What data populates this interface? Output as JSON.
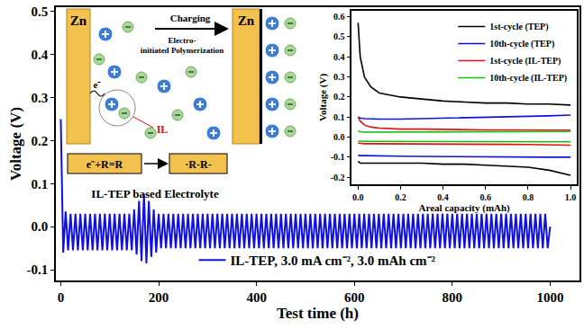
{
  "chart_data": [
    {
      "type": "line",
      "x_label": "Test time (h)",
      "y_label": "Voltage (V)",
      "x": [
        0,
        5,
        10,
        15,
        20,
        25,
        30,
        35,
        40,
        45,
        50,
        55,
        60,
        65,
        70,
        75,
        80,
        85,
        90,
        95,
        100,
        105,
        110,
        115,
        120,
        125,
        130,
        135,
        140,
        145,
        150,
        155,
        160,
        165,
        170,
        175,
        180,
        185,
        190,
        195,
        200,
        205,
        210,
        215,
        220,
        225,
        230,
        235,
        240,
        245,
        250,
        255,
        260,
        265,
        270,
        275,
        280,
        285,
        290,
        295,
        300,
        305,
        310,
        315,
        320,
        325,
        330,
        335,
        340,
        345,
        350,
        355,
        360,
        365,
        370,
        375,
        380,
        385,
        390,
        395,
        400,
        405,
        410,
        415,
        420,
        425,
        430,
        435,
        440,
        445,
        450,
        455,
        460,
        465,
        470,
        475,
        480,
        485,
        490,
        495,
        500,
        505,
        510,
        515,
        520,
        525,
        530,
        535,
        540,
        545,
        550,
        555,
        560,
        565,
        570,
        575,
        580,
        585,
        590,
        595,
        600,
        605,
        610,
        615,
        620,
        625,
        630,
        635,
        640,
        645,
        650,
        655,
        660,
        665,
        670,
        675,
        680,
        685,
        690,
        695,
        700,
        705,
        710,
        715,
        720,
        725,
        730,
        735,
        740,
        745,
        750,
        755,
        760,
        765,
        770,
        775,
        780,
        785,
        790,
        795,
        800,
        805,
        810,
        815,
        820,
        825,
        830,
        835,
        840,
        845,
        850,
        855,
        860,
        865,
        870,
        875,
        880,
        885,
        890,
        895,
        900,
        905,
        910,
        915,
        920,
        925,
        930,
        935,
        940,
        945,
        950,
        955,
        960,
        965,
        970,
        975,
        980,
        985,
        990,
        995,
        1000
      ],
      "series": [
        {
          "name": "IL-TEP, 3.0 mA cm⁻², 3.0 mAh cm⁻²",
          "color": "#1010e0",
          "values": [
            0.25,
            -0.06,
            0.035,
            -0.055,
            0.03,
            -0.055,
            0.03,
            -0.055,
            0.03,
            -0.055,
            0.03,
            -0.055,
            0.03,
            -0.055,
            0.03,
            -0.055,
            0.03,
            -0.055,
            0.03,
            -0.055,
            0.03,
            -0.055,
            0.03,
            -0.055,
            0.03,
            -0.055,
            0.03,
            -0.055,
            0.03,
            -0.055,
            0.04,
            -0.065,
            0.06,
            -0.08,
            0.075,
            -0.085,
            0.06,
            -0.07,
            0.04,
            -0.06,
            0.03,
            -0.05,
            0.03,
            -0.05,
            0.03,
            -0.05,
            0.03,
            -0.05,
            0.03,
            -0.05,
            0.03,
            -0.05,
            0.03,
            -0.05,
            0.03,
            -0.05,
            0.03,
            -0.05,
            0.03,
            -0.05,
            0.03,
            -0.05,
            0.03,
            -0.05,
            0.03,
            -0.05,
            0.03,
            -0.05,
            0.03,
            -0.05,
            0.03,
            -0.05,
            0.03,
            -0.05,
            0.03,
            -0.05,
            0.03,
            -0.05,
            0.03,
            -0.05,
            0.03,
            -0.05,
            0.03,
            -0.05,
            0.03,
            -0.05,
            0.03,
            -0.05,
            0.03,
            -0.05,
            0.03,
            -0.05,
            0.03,
            -0.05,
            0.03,
            -0.05,
            0.03,
            -0.05,
            0.03,
            -0.05,
            0.03,
            -0.05,
            0.03,
            -0.05,
            0.03,
            -0.05,
            0.03,
            -0.05,
            0.03,
            -0.05,
            0.03,
            -0.05,
            0.03,
            -0.05,
            0.03,
            -0.05,
            0.03,
            -0.05,
            0.03,
            -0.05,
            0.03,
            -0.05,
            0.03,
            -0.05,
            0.03,
            -0.05,
            0.03,
            -0.05,
            0.03,
            -0.05,
            0.03,
            -0.05,
            0.03,
            -0.05,
            0.03,
            -0.05,
            0.03,
            -0.05,
            0.03,
            -0.05,
            0.03,
            -0.05,
            0.03,
            -0.05,
            0.03,
            -0.05,
            0.03,
            -0.05,
            0.03,
            -0.05,
            0.03,
            -0.05,
            0.03,
            -0.05,
            0.03,
            -0.05,
            0.03,
            -0.05,
            0.03,
            -0.05,
            0.03,
            -0.05,
            0.03,
            -0.05,
            0.03,
            -0.05,
            0.03,
            -0.05,
            0.03,
            -0.05,
            0.03,
            -0.05,
            0.03,
            -0.05,
            0.03,
            -0.05,
            0.03,
            -0.05,
            0.03,
            -0.05,
            0.03,
            -0.05,
            0.03,
            -0.05,
            0.03,
            -0.05,
            0.03,
            -0.05,
            0.03,
            -0.05,
            0.03,
            -0.05,
            0.03,
            -0.05,
            0.03,
            -0.05,
            0.03,
            -0.05,
            0.03,
            -0.05,
            0
          ]
        }
      ],
      "xlim": [
        -10,
        1060
      ],
      "ylim": [
        -0.125,
        0.51
      ],
      "xticks": [
        0,
        200,
        400,
        600,
        800,
        1000
      ],
      "yticks": [
        -0.1,
        {
          "value": 0,
          "label": "0.0"
        },
        0.1,
        0.2,
        0.3,
        0.4,
        0.5
      ],
      "grid": false,
      "legend": "lower center"
    },
    {
      "type": "line",
      "x_label": "Areal capacity (mAh)",
      "y_label": "Voltage (V)",
      "x": [
        0,
        0.01,
        0.03,
        0.06,
        0.1,
        0.2,
        0.3,
        0.4,
        0.5,
        0.6,
        0.7,
        0.8,
        0.9,
        1.0,
        null,
        0,
        0.01,
        0.03,
        0.06,
        0.1,
        0.2,
        0.3,
        0.4,
        0.5,
        0.6,
        0.7,
        0.8,
        0.9,
        1.0
      ],
      "series": [
        {
          "name": "1st-cycle (TEP)",
          "color": "#000000",
          "values": [
            0.57,
            0.4,
            0.3,
            0.25,
            0.22,
            0.2,
            0.19,
            0.18,
            0.175,
            0.17,
            0.17,
            0.165,
            0.165,
            0.16,
            null,
            -0.12,
            -0.13,
            -0.13,
            -0.13,
            -0.13,
            -0.13,
            -0.13,
            -0.135,
            -0.135,
            -0.14,
            -0.145,
            -0.15,
            -0.165,
            -0.19
          ]
        },
        {
          "name": "10th-cycle (TEP)",
          "color": "#1010e0",
          "values": [
            0.1,
            0.095,
            0.092,
            0.09,
            0.09,
            0.09,
            0.092,
            0.094,
            0.096,
            0.098,
            0.1,
            0.103,
            0.106,
            0.11,
            null,
            -0.09,
            -0.092,
            -0.092,
            -0.093,
            -0.094,
            -0.095,
            -0.096,
            -0.097,
            -0.098,
            -0.1,
            -0.1,
            -0.1,
            -0.1,
            -0.1
          ]
        },
        {
          "name": "1st-cycle (IL-TEP)",
          "color": "#e01010",
          "values": [
            0.1,
            0.08,
            0.06,
            0.05,
            0.045,
            0.04,
            0.04,
            0.038,
            0.037,
            0.036,
            0.036,
            0.035,
            0.035,
            0.035,
            null,
            -0.03,
            -0.032,
            -0.033,
            -0.033,
            -0.033,
            -0.033,
            -0.034,
            -0.034,
            -0.035,
            -0.035,
            -0.036,
            -0.037,
            -0.038,
            -0.04
          ]
        },
        {
          "name": "10th-cycle (IL-TEP)",
          "color": "#10c010",
          "values": [
            0.03,
            0.027,
            0.025,
            0.025,
            0.025,
            0.025,
            0.025,
            0.025,
            0.026,
            0.026,
            0.027,
            0.027,
            0.028,
            0.028,
            null,
            -0.02,
            -0.021,
            -0.021,
            -0.021,
            -0.021,
            -0.021,
            -0.021,
            -0.022,
            -0.022,
            -0.022,
            -0.022,
            -0.022,
            -0.023,
            -0.023
          ]
        }
      ],
      "xlim": [
        -0.03,
        1.03
      ],
      "ylim": [
        -0.235,
        0.63
      ],
      "xticks": [
        {
          "value": 0,
          "label": "0.0"
        },
        0.2,
        0.4,
        0.6,
        0.8,
        {
          "value": 1,
          "label": "1.0"
        }
      ],
      "yticks": [
        -0.2,
        -0.1,
        {
          "value": 0,
          "label": "0.0"
        },
        0.1,
        0.2,
        0.3,
        0.4,
        0.5,
        0.6
      ],
      "grid": false,
      "legend": "upper right"
    }
  ],
  "diagram": {
    "electrodes": [
      "Zn",
      "Zn"
    ],
    "electron": "e⁻",
    "arrow_label": "Charging",
    "process": [
      "Electro-",
      "initiated Polymerization"
    ],
    "additive": "IL",
    "reaction": "e⁻+R=R",
    "product": "·R-R-",
    "caption": "IL-TEP based Electrolyte"
  }
}
